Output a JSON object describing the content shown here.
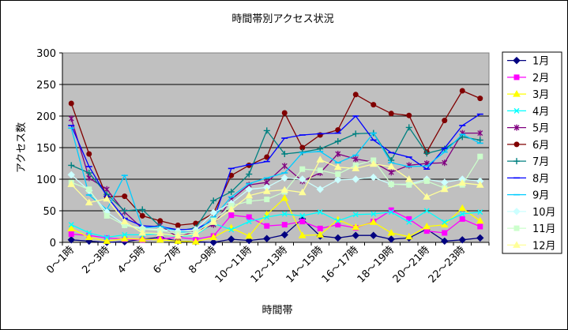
{
  "chart_data": {
    "type": "line",
    "title": "時間帯別アクセス状況",
    "xlabel": "時間帯",
    "ylabel": "アクセス数",
    "ylim": [
      0,
      300
    ],
    "yticks": [
      0,
      50,
      100,
      150,
      200,
      250,
      300
    ],
    "grid": "horizontal",
    "legend_position": "right",
    "plot_background": "#c0c0c0",
    "categories": [
      "0～1時",
      "1～2時",
      "2～3時",
      "3～4時",
      "4～5時",
      "5～6時",
      "6～7時",
      "7～8時",
      "8～9時",
      "9～10時",
      "10～11時",
      "11～12時",
      "12～13時",
      "13～14時",
      "14～15時",
      "15～16時",
      "16～17時",
      "17～18時",
      "18～19時",
      "19～20時",
      "20～21時",
      "21～22時",
      "22～23時",
      "23～24時"
    ],
    "visible_category_labels": [
      "0～1時",
      "2～3時",
      "4～5時",
      "6～7時",
      "8～9時",
      "10～11時",
      "12～13時",
      "14～15時",
      "16～17時",
      "18～19時",
      "20～21時",
      "22～23時"
    ],
    "series": [
      {
        "name": "1月",
        "color": "#000080",
        "marker": "diamond",
        "values": [
          4,
          2,
          0,
          1,
          5,
          8,
          2,
          1,
          0,
          5,
          3,
          6,
          12,
          37,
          10,
          7,
          11,
          11,
          5,
          7,
          21,
          2,
          4,
          7
        ]
      },
      {
        "name": "2月",
        "color": "#ff00ff",
        "marker": "square",
        "values": [
          13,
          11,
          7,
          5,
          4,
          5,
          8,
          5,
          10,
          43,
          40,
          26,
          28,
          33,
          22,
          28,
          23,
          33,
          51,
          37,
          18,
          15,
          37,
          25
        ]
      },
      {
        "name": "3月",
        "color": "#ffff00",
        "marker": "triangle",
        "values": [
          22,
          8,
          2,
          6,
          5,
          4,
          2,
          1,
          8,
          23,
          10,
          44,
          70,
          11,
          12,
          36,
          24,
          32,
          15,
          9,
          25,
          28,
          54,
          34
        ]
      },
      {
        "name": "4月",
        "color": "#00ffff",
        "marker": "x",
        "values": [
          28,
          15,
          8,
          12,
          12,
          14,
          9,
          12,
          30,
          20,
          33,
          40,
          45,
          42,
          48,
          34,
          44,
          45,
          48,
          32,
          50,
          32,
          45,
          48
        ]
      },
      {
        "name": "5月",
        "color": "#800080",
        "marker": "asterisk",
        "values": [
          196,
          102,
          84,
          48,
          22,
          27,
          8,
          18,
          28,
          68,
          91,
          95,
          121,
          97,
          110,
          140,
          132,
          127,
          111,
          122,
          125,
          126,
          173,
          173
        ]
      },
      {
        "name": "6月",
        "color": "#800000",
        "marker": "circle",
        "values": [
          220,
          140,
          72,
          73,
          42,
          34,
          27,
          30,
          46,
          106,
          122,
          135,
          205,
          150,
          170,
          178,
          234,
          218,
          204,
          201,
          143,
          193,
          240,
          228
        ]
      },
      {
        "name": "7月",
        "color": "#008080",
        "marker": "plus",
        "values": [
          122,
          110,
          76,
          50,
          52,
          25,
          18,
          23,
          66,
          80,
          108,
          177,
          140,
          143,
          148,
          160,
          172,
          173,
          130,
          182,
          141,
          148,
          167,
          162
        ]
      },
      {
        "name": "8月",
        "color": "#0000ff",
        "marker": "dash",
        "values": [
          185,
          120,
          73,
          38,
          26,
          25,
          20,
          21,
          35,
          117,
          123,
          128,
          165,
          170,
          172,
          173,
          200,
          162,
          142,
          135,
          116,
          149,
          185,
          203
        ]
      },
      {
        "name": "9月",
        "color": "#00ccff",
        "marker": "dash",
        "values": [
          181,
          75,
          52,
          106,
          23,
          25,
          17,
          15,
          40,
          72,
          93,
          102,
          110,
          142,
          144,
          126,
          138,
          173,
          126,
          120,
          121,
          143,
          171,
          157
        ]
      },
      {
        "name": "10月",
        "color": "#ccffff",
        "marker": "diamond",
        "values": [
          107,
          82,
          48,
          28,
          22,
          20,
          18,
          20,
          47,
          62,
          84,
          87,
          102,
          100,
          84,
          99,
          100,
          103,
          92,
          92,
          100,
          95,
          100,
          97
        ]
      },
      {
        "name": "11月",
        "color": "#ccffcc",
        "marker": "square",
        "values": [
          95,
          84,
          42,
          27,
          21,
          19,
          14,
          16,
          35,
          58,
          65,
          68,
          80,
          116,
          114,
          108,
          122,
          130,
          92,
          91,
          97,
          86,
          91,
          136
        ]
      },
      {
        "name": "12月",
        "color": "#ffff99",
        "marker": "triangle",
        "values": [
          92,
          63,
          69,
          33,
          15,
          14,
          10,
          13,
          32,
          52,
          74,
          81,
          83,
          79,
          131,
          119,
          117,
          124,
          120,
          100,
          72,
          84,
          94,
          91
        ]
      }
    ]
  }
}
